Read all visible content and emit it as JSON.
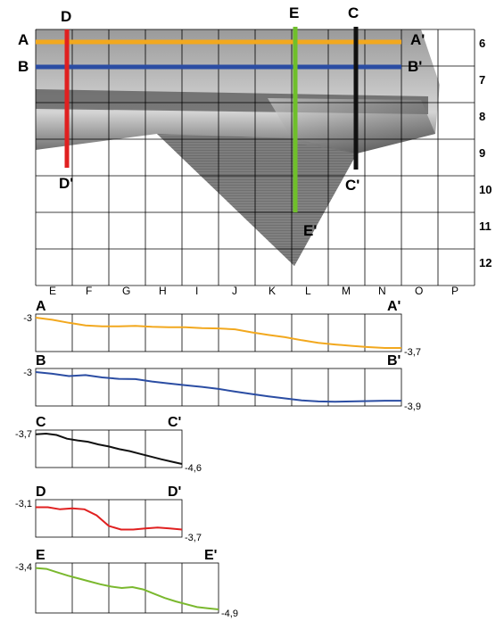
{
  "map": {
    "column_labels": [
      "E",
      "F",
      "G",
      "H",
      "I",
      "J",
      "K",
      "L",
      "M",
      "N",
      "O",
      "P"
    ],
    "row_labels": [
      "6",
      "7",
      "8",
      "9",
      "10",
      "11",
      "12"
    ],
    "sections": [
      {
        "start": "A",
        "end": "A'",
        "color": "#f2a81e",
        "orientation": "horizontal"
      },
      {
        "start": "B",
        "end": "B'",
        "color": "#2b4da3",
        "orientation": "horizontal"
      },
      {
        "start": "C",
        "end": "C'",
        "color": "#111111",
        "orientation": "vertical"
      },
      {
        "start": "D",
        "end": "D'",
        "color": "#e02020",
        "orientation": "vertical"
      },
      {
        "start": "E",
        "end": "E'",
        "color": "#6fbf2a",
        "orientation": "vertical"
      }
    ]
  },
  "profiles": [
    {
      "start": "A",
      "end": "A'",
      "color": "#f2a81e",
      "top_value": "-3",
      "bottom_value": "-3,7",
      "values": [
        -3.0,
        -3.05,
        -3.12,
        -3.18,
        -3.2,
        -3.2,
        -3.19,
        -3.21,
        -3.22,
        -3.22,
        -3.24,
        -3.25,
        -3.27,
        -3.34,
        -3.4,
        -3.45,
        -3.52,
        -3.58,
        -3.62,
        -3.65,
        -3.68,
        -3.7,
        -3.7
      ]
    },
    {
      "start": "B",
      "end": "B'",
      "color": "#2b4da3",
      "top_value": "-3",
      "bottom_value": "-3,9",
      "values": [
        -3.0,
        -3.05,
        -3.12,
        -3.09,
        -3.16,
        -3.2,
        -3.21,
        -3.28,
        -3.34,
        -3.39,
        -3.44,
        -3.5,
        -3.58,
        -3.65,
        -3.72,
        -3.78,
        -3.84,
        -3.87,
        -3.88,
        -3.87,
        -3.86,
        -3.85,
        -3.85
      ]
    },
    {
      "start": "C",
      "end": "C'",
      "color": "#111111",
      "top_value": "-3,7",
      "bottom_value": "-4,6",
      "values": [
        -3.72,
        -3.7,
        -3.74,
        -3.85,
        -3.9,
        -3.94,
        -4.02,
        -4.08,
        -4.16,
        -4.22,
        -4.3,
        -4.38,
        -4.46,
        -4.53,
        -4.6
      ]
    },
    {
      "start": "D",
      "end": "D'",
      "color": "#e02020",
      "top_value": "-3,1",
      "bottom_value": "-3,7",
      "values": [
        -3.18,
        -3.18,
        -3.22,
        -3.2,
        -3.22,
        -3.34,
        -3.55,
        -3.62,
        -3.62,
        -3.6,
        -3.58,
        -3.6,
        -3.62
      ]
    },
    {
      "start": "E",
      "end": "E'",
      "color": "#7ab82e",
      "top_value": "-3,4",
      "bottom_value": "-4,9",
      "values": [
        -3.45,
        -3.48,
        -3.6,
        -3.72,
        -3.82,
        -3.92,
        -4.02,
        -4.1,
        -4.15,
        -4.12,
        -4.2,
        -4.35,
        -4.5,
        -4.62,
        -4.72,
        -4.82,
        -4.86,
        -4.9
      ]
    }
  ]
}
